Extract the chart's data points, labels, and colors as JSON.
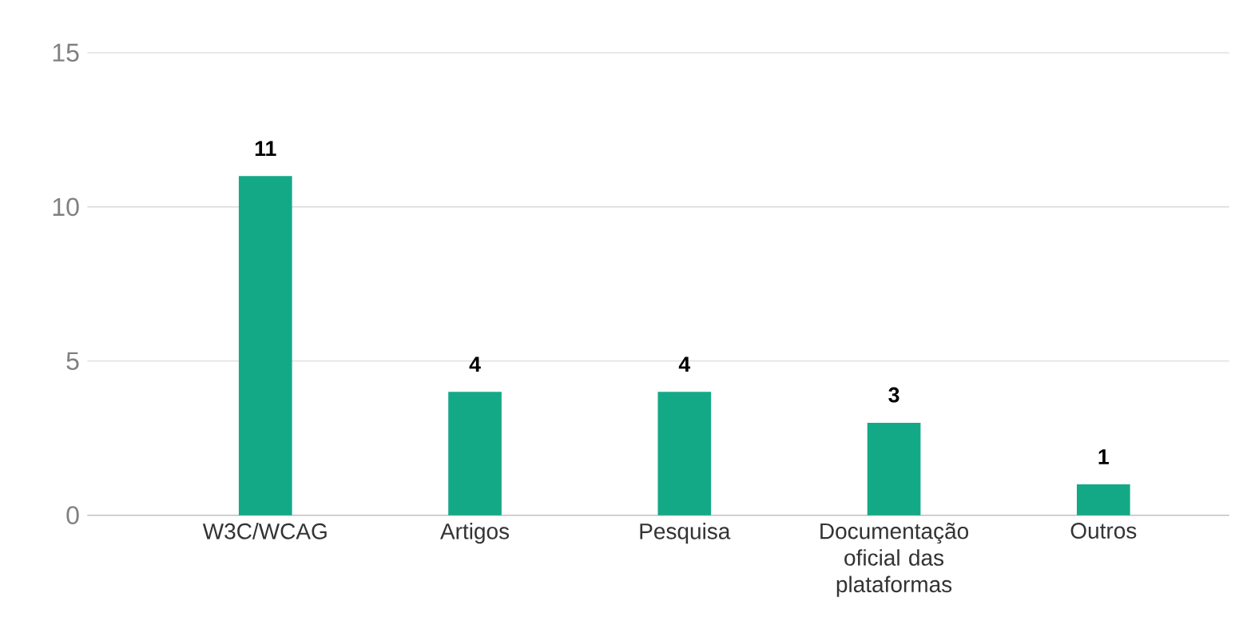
{
  "chart_data": {
    "type": "bar",
    "categories": [
      "W3C/WCAG",
      "Artigos",
      "Pesquisa",
      "Documentação oficial das plataformas",
      "Outros"
    ],
    "values": [
      11,
      4,
      4,
      3,
      1
    ],
    "color": "#14a986",
    "ylim": [
      0,
      15
    ],
    "yticks": [
      0,
      5,
      10,
      15
    ],
    "grid": "y",
    "data_labels": true
  }
}
